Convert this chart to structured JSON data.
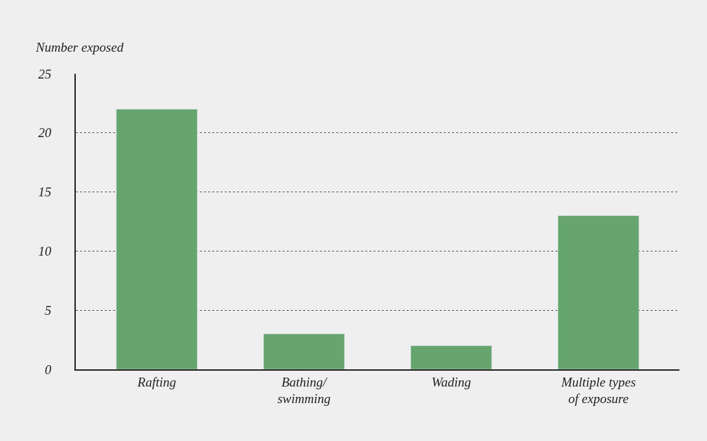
{
  "chart_data": {
    "type": "bar",
    "ylabel": "Number exposed",
    "categories": [
      "Rafting",
      "Bathing/\nswimming",
      "Wading",
      "Multiple types\nof exposure"
    ],
    "values": [
      22,
      3,
      2,
      13
    ],
    "color": "#67a56f",
    "ylim": [
      0,
      25
    ],
    "yticks": [
      0,
      5,
      10,
      15,
      20,
      25
    ],
    "grid": "y",
    "legend": false
  }
}
